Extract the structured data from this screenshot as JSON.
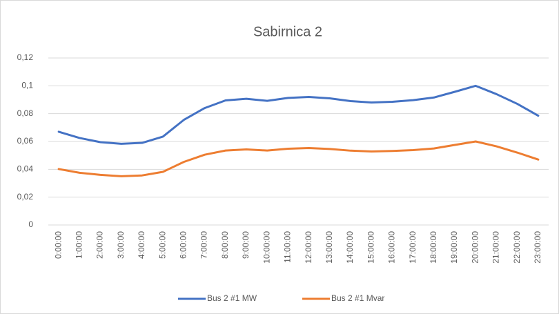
{
  "chart_data": {
    "type": "line",
    "title": "Sabirnica 2",
    "categories": [
      "0:00:00",
      "1:00:00",
      "2:00:00",
      "3:00:00",
      "4:00:00",
      "5:00:00",
      "6:00:00",
      "7:00:00",
      "8:00:00",
      "9:00:00",
      "10:00:00",
      "11:00:00",
      "12:00:00",
      "13:00:00",
      "14:00:00",
      "15:00:00",
      "16:00:00",
      "17:00:00",
      "18:00:00",
      "19:00:00",
      "20:00:00",
      "21:00:00",
      "22:00:00",
      "23:00:00"
    ],
    "series": [
      {
        "name": "Bus 2 #1 MW",
        "color": "#4472c4",
        "values": [
          0.067,
          0.0625,
          0.0595,
          0.0583,
          0.059,
          0.0635,
          0.0755,
          0.084,
          0.0895,
          0.0907,
          0.0892,
          0.0913,
          0.092,
          0.091,
          0.089,
          0.088,
          0.0885,
          0.0897,
          0.0916,
          0.0957,
          0.1,
          0.094,
          0.087,
          0.0785
        ]
      },
      {
        "name": "Bus 2 #1 Mvar",
        "color": "#ed7d31",
        "values": [
          0.0402,
          0.0375,
          0.036,
          0.035,
          0.0356,
          0.0382,
          0.0453,
          0.0505,
          0.0535,
          0.0543,
          0.0535,
          0.0548,
          0.0553,
          0.0546,
          0.0534,
          0.0528,
          0.0532,
          0.0538,
          0.055,
          0.0575,
          0.06,
          0.0565,
          0.052,
          0.047
        ]
      }
    ],
    "ylim": [
      0,
      0.12
    ],
    "yticks": [
      0,
      {
        "value": 0.02,
        "label": "0,02"
      },
      {
        "value": 0.04,
        "label": "0,04"
      },
      {
        "value": 0.06,
        "label": "0,06"
      },
      {
        "value": 0.08,
        "label": "0,08"
      },
      {
        "value": 0.1,
        "label": "0,1"
      },
      {
        "value": 0.12,
        "label": "0,12"
      }
    ],
    "grid": true,
    "legend": "bottom"
  }
}
